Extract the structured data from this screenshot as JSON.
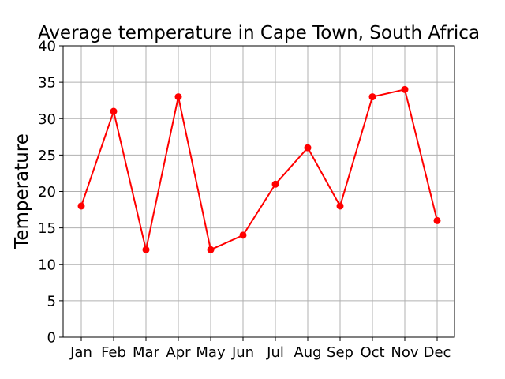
{
  "chart_data": {
    "type": "line",
    "title": "Average temperature in Cape Town, South Africa",
    "xlabel": "",
    "ylabel": "Temperature",
    "categories": [
      "Jan",
      "Feb",
      "Mar",
      "Apr",
      "May",
      "Jun",
      "Jul",
      "Aug",
      "Sep",
      "Oct",
      "Nov",
      "Dec"
    ],
    "series": [
      {
        "values": [
          18,
          31,
          12,
          33,
          12,
          14,
          21,
          26,
          18,
          33,
          34,
          16
        ],
        "color": "#ff0000",
        "marker": "circle"
      }
    ],
    "ylim": [
      0,
      40
    ],
    "yticks": [
      0,
      5,
      10,
      15,
      20,
      25,
      30,
      35,
      40
    ],
    "grid": true,
    "legend": "none"
  }
}
